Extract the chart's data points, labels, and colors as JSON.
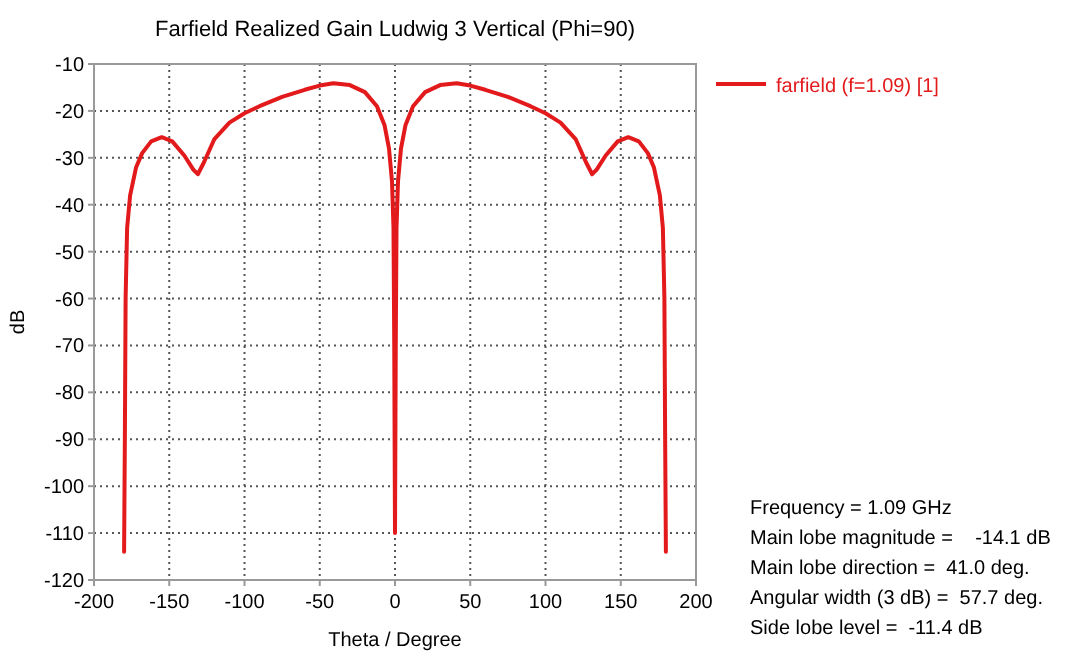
{
  "chart_data": {
    "type": "line",
    "title": "Farfield Realized Gain Ludwig 3 Vertical (Phi=90)",
    "xlabel": "Theta / Degree",
    "ylabel": "dB",
    "x": [
      -180,
      -179.5,
      -179,
      -178,
      -176,
      -172,
      -168,
      -162,
      -155,
      -148,
      -140,
      -134,
      -131,
      -127,
      -120,
      -110,
      -100,
      -90,
      -75,
      -60,
      -50,
      -41,
      -30,
      -20,
      -12,
      -7,
      -4,
      -2,
      -1,
      -0.5,
      0,
      0.5,
      1,
      2,
      4,
      7,
      12,
      20,
      30,
      41,
      50,
      60,
      75,
      90,
      100,
      110,
      120,
      127,
      131,
      134,
      140,
      148,
      155,
      162,
      168,
      172,
      176,
      178,
      179,
      179.5,
      180
    ],
    "series": [
      {
        "name": "farfield (f=1.09) [1]",
        "color": "#e31a1c",
        "values": [
          -114,
          -90,
          -60,
          -45,
          -38,
          -32,
          -29,
          -26.5,
          -25.6,
          -26.5,
          -29.5,
          -32.5,
          -33.5,
          -31,
          -26,
          -22.5,
          -20.5,
          -19,
          -17,
          -15.5,
          -14.6,
          -14.1,
          -14.5,
          -16,
          -19,
          -23,
          -28,
          -35,
          -45,
          -70,
          -110,
          -70,
          -45,
          -35,
          -28,
          -23,
          -19,
          -16,
          -14.5,
          -14.1,
          -14.6,
          -15.5,
          -17,
          -19,
          -20.5,
          -22.5,
          -26,
          -31,
          -33.5,
          -32.5,
          -29.5,
          -26.5,
          -25.6,
          -26.5,
          -29,
          -32,
          -38,
          -45,
          -60,
          -90,
          -114
        ]
      }
    ],
    "xlim": [
      -200,
      200
    ],
    "xticks": [
      -200,
      -150,
      -100,
      -50,
      0,
      50,
      100,
      150,
      200
    ],
    "ylim": [
      -120,
      -10
    ],
    "yticks": [
      -120,
      -110,
      -100,
      -90,
      -80,
      -70,
      -60,
      -50,
      -40,
      -30,
      -20,
      -10
    ],
    "grid": true,
    "legend": "top right",
    "marker": "none",
    "line_style": "solid",
    "annotations": [
      "Frequency = 1.09 GHz",
      "Main lobe magnitude =    -14.1 dB",
      "Main lobe direction =  41.0 deg.",
      "Angular width (3 dB) =  57.7 deg.",
      "Side lobe level =  -11.4 dB"
    ]
  }
}
